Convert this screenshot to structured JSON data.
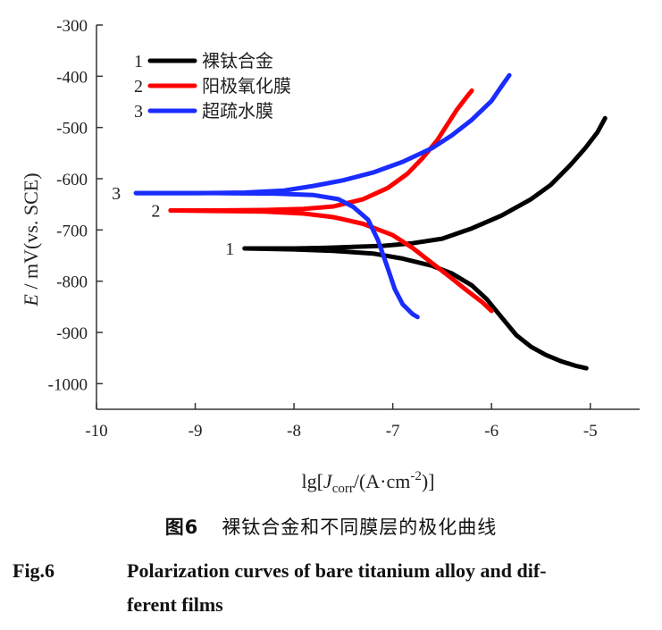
{
  "chart_data": {
    "type": "line",
    "title": "",
    "xlabel": "lg[Jcorr/(A·cm-2)]",
    "xlabel_parts": {
      "prefix": "lg[",
      "J": "J",
      "sub": "corr",
      "mid": "/(A·cm",
      "sup": "-2",
      "suffix": ")]"
    },
    "ylabel": "E / mV(vs. SCE)",
    "ylabel_parts": {
      "E": "E",
      "rest": " / mV(vs. SCE)"
    },
    "xlim": [
      -10,
      -4.5
    ],
    "ylim": [
      -1050,
      -300
    ],
    "xticks": [
      -10,
      -9,
      -8,
      -7,
      -6,
      -5
    ],
    "xtick_labels": [
      "-10",
      "-9",
      "-8",
      "-7",
      "-6",
      "-5"
    ],
    "yticks": [
      -300,
      -400,
      -500,
      -600,
      -700,
      -800,
      -900,
      -1000
    ],
    "ytick_labels": [
      "-300",
      "-400",
      "-500",
      "-600",
      "-700",
      "-800",
      "-900",
      "-1000"
    ],
    "legend_position": "top-left",
    "series": [
      {
        "id": "1",
        "name": "裸钛合金",
        "color": "#000000",
        "points": [
          [
            -8.5,
            -736
          ],
          [
            -8.0,
            -736
          ],
          [
            -7.7,
            -735
          ],
          [
            -7.4,
            -733
          ],
          [
            -7.1,
            -731
          ],
          [
            -6.8,
            -726
          ],
          [
            -6.5,
            -717
          ],
          [
            -6.2,
            -697
          ],
          [
            -5.9,
            -672
          ],
          [
            -5.6,
            -640
          ],
          [
            -5.4,
            -612
          ],
          [
            -5.2,
            -573
          ],
          [
            -5.05,
            -540
          ],
          [
            -4.93,
            -510
          ],
          [
            -4.85,
            -482
          ]
        ]
      },
      {
        "id": "1b",
        "name": "裸钛合金 (cathodic)",
        "color": "#000000",
        "points": [
          [
            -8.5,
            -736
          ],
          [
            -8.0,
            -738
          ],
          [
            -7.6,
            -741
          ],
          [
            -7.2,
            -746
          ],
          [
            -6.9,
            -756
          ],
          [
            -6.6,
            -770
          ],
          [
            -6.4,
            -785
          ],
          [
            -6.2,
            -808
          ],
          [
            -6.05,
            -835
          ],
          [
            -5.9,
            -870
          ],
          [
            -5.75,
            -905
          ],
          [
            -5.6,
            -928
          ],
          [
            -5.45,
            -944
          ],
          [
            -5.3,
            -956
          ],
          [
            -5.15,
            -965
          ],
          [
            -5.04,
            -970
          ]
        ]
      },
      {
        "id": "2",
        "name": "阳极氧化膜",
        "color": "#ff0000",
        "points": [
          [
            -9.25,
            -662
          ],
          [
            -8.8,
            -662
          ],
          [
            -8.3,
            -661
          ],
          [
            -7.9,
            -659
          ],
          [
            -7.6,
            -654
          ],
          [
            -7.3,
            -640
          ],
          [
            -7.05,
            -618
          ],
          [
            -6.85,
            -590
          ],
          [
            -6.7,
            -560
          ],
          [
            -6.55,
            -525
          ],
          [
            -6.45,
            -495
          ],
          [
            -6.35,
            -465
          ],
          [
            -6.25,
            -440
          ],
          [
            -6.2,
            -428
          ]
        ]
      },
      {
        "id": "2b",
        "name": "阳极氧化膜 (cathodic)",
        "color": "#ff0000",
        "points": [
          [
            -9.25,
            -662
          ],
          [
            -8.8,
            -663
          ],
          [
            -8.3,
            -664
          ],
          [
            -7.9,
            -668
          ],
          [
            -7.6,
            -675
          ],
          [
            -7.3,
            -688
          ],
          [
            -7.0,
            -710
          ],
          [
            -6.8,
            -735
          ],
          [
            -6.6,
            -765
          ],
          [
            -6.4,
            -795
          ],
          [
            -6.25,
            -818
          ],
          [
            -6.1,
            -840
          ],
          [
            -6.0,
            -858
          ]
        ]
      },
      {
        "id": "3",
        "name": "超疏水膜",
        "color": "#1a2cff",
        "points": [
          [
            -9.6,
            -628
          ],
          [
            -9.0,
            -628
          ],
          [
            -8.5,
            -627
          ],
          [
            -8.1,
            -623
          ],
          [
            -7.8,
            -614
          ],
          [
            -7.5,
            -603
          ],
          [
            -7.2,
            -588
          ],
          [
            -6.9,
            -567
          ],
          [
            -6.6,
            -540
          ],
          [
            -6.4,
            -515
          ],
          [
            -6.2,
            -485
          ],
          [
            -6.0,
            -448
          ],
          [
            -5.9,
            -420
          ],
          [
            -5.82,
            -398
          ]
        ]
      },
      {
        "id": "3b",
        "name": "超疏水膜 (cathodic)",
        "color": "#1a2cff",
        "points": [
          [
            -9.6,
            -628
          ],
          [
            -8.8,
            -628
          ],
          [
            -8.2,
            -629
          ],
          [
            -7.8,
            -632
          ],
          [
            -7.55,
            -640
          ],
          [
            -7.4,
            -655
          ],
          [
            -7.25,
            -680
          ],
          [
            -7.15,
            -720
          ],
          [
            -7.05,
            -775
          ],
          [
            -6.98,
            -815
          ],
          [
            -6.9,
            -845
          ],
          [
            -6.8,
            -864
          ],
          [
            -6.75,
            -870
          ]
        ]
      }
    ],
    "legend": [
      {
        "num": "1",
        "label": "裸钛合金",
        "color": "#000000"
      },
      {
        "num": "2",
        "label": "阳极氧化膜",
        "color": "#ff0000"
      },
      {
        "num": "3",
        "label": "超疏水膜",
        "color": "#1a2cff"
      }
    ],
    "curve_labels": [
      {
        "text": "1",
        "at": [
          -8.55,
          -736
        ]
      },
      {
        "text": "2",
        "at": [
          -9.3,
          -662
        ]
      },
      {
        "text": "3",
        "at": [
          -9.7,
          -628
        ]
      }
    ]
  },
  "caption": {
    "cn_fig": "图6",
    "cn_text": "裸钛合金和不同膜层的极化曲线",
    "en_fig": "Fig.6",
    "en_line1": "Polarization curves of bare titanium alloy and dif-",
    "en_line2": "ferent films"
  }
}
